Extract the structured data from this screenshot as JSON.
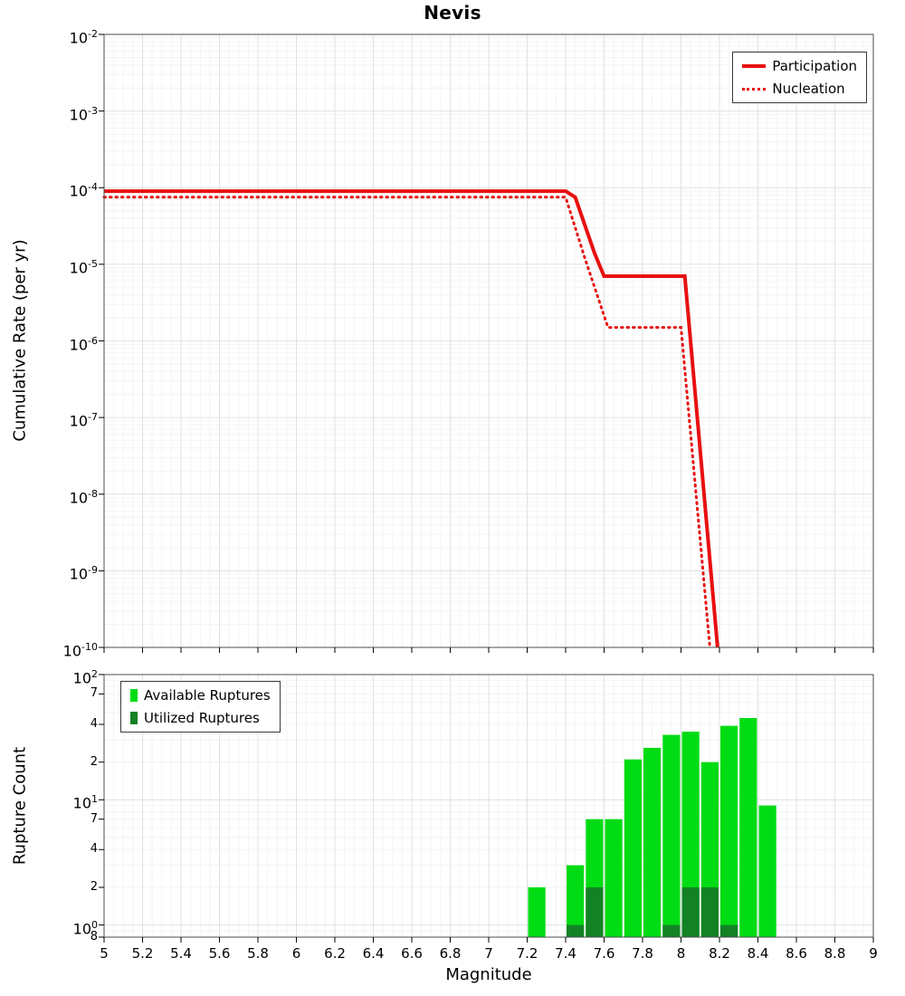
{
  "chart_data": [
    {
      "type": "line",
      "title": "Nevis",
      "xlabel": "",
      "ylabel": "Cumulative Rate (per yr)",
      "x_range": [
        5,
        9
      ],
      "y_range": [
        1e-10,
        0.01
      ],
      "y_scale": "log",
      "grid": true,
      "legend_position": "top-right",
      "y_ticks": [
        {
          "value": 0.01,
          "label": "10^-2"
        },
        {
          "value": 0.001,
          "label": "10^-3"
        },
        {
          "value": 0.0001,
          "label": "10^-4"
        },
        {
          "value": 1e-05,
          "label": "10^-5"
        },
        {
          "value": 1e-06,
          "label": "10^-6"
        },
        {
          "value": 1e-07,
          "label": "10^-7"
        },
        {
          "value": 1e-08,
          "label": "10^-8"
        },
        {
          "value": 1e-09,
          "label": "10^-9"
        },
        {
          "value": 1e-10,
          "label": "10^-10"
        }
      ],
      "series": [
        {
          "name": "Participation",
          "color": "#e81010",
          "style": "solid",
          "points": [
            [
              5.0,
              9e-05
            ],
            [
              7.4,
              9e-05
            ],
            [
              7.45,
              7.5e-05
            ],
            [
              7.55,
              1.4e-05
            ],
            [
              7.6,
              7e-06
            ],
            [
              8.02,
              7e-06
            ],
            [
              8.19,
              1e-10
            ]
          ]
        },
        {
          "name": "Nucleation",
          "color": "#e81010",
          "style": "dotted",
          "points": [
            [
              5.0,
              7.5e-05
            ],
            [
              7.4,
              7.5e-05
            ],
            [
              7.5,
              1.2e-05
            ],
            [
              7.62,
              1.5e-06
            ],
            [
              8.0,
              1.5e-06
            ],
            [
              8.15,
              1e-10
            ]
          ]
        }
      ]
    },
    {
      "type": "bar",
      "title": "",
      "xlabel": "Magnitude",
      "ylabel": "Rupture Count",
      "x_range": [
        5,
        9
      ],
      "y_range": [
        0.8,
        100
      ],
      "y_scale": "log",
      "grid": true,
      "bar_width": 0.1,
      "legend_position": "top-left",
      "y_ticks": [
        {
          "value": 100,
          "label": "10^2"
        },
        {
          "value": 70,
          "label": "7"
        },
        {
          "value": 40,
          "label": "4"
        },
        {
          "value": 20,
          "label": "2"
        },
        {
          "value": 10,
          "label": "10^1"
        },
        {
          "value": 7,
          "label": "7"
        },
        {
          "value": 4,
          "label": "4"
        },
        {
          "value": 2,
          "label": "2"
        },
        {
          "value": 1,
          "label": "10^0"
        },
        {
          "value": 0.8,
          "label": "8"
        }
      ],
      "x_tick_labels": [
        {
          "value": 5,
          "label": "5"
        },
        {
          "value": 5.2,
          "label": "5.2"
        },
        {
          "value": 5.4,
          "label": "5.4"
        },
        {
          "value": 5.6,
          "label": "5.6"
        },
        {
          "value": 5.8,
          "label": "5.8"
        },
        {
          "value": 6,
          "label": "6"
        },
        {
          "value": 6.2,
          "label": "6.2"
        },
        {
          "value": 6.4,
          "label": "6.4"
        },
        {
          "value": 6.6,
          "label": "6.6"
        },
        {
          "value": 6.8,
          "label": "6.8"
        },
        {
          "value": 7,
          "label": "7"
        },
        {
          "value": 7.2,
          "label": "7.2"
        },
        {
          "value": 7.4,
          "label": "7.4"
        },
        {
          "value": 7.6,
          "label": "7.6"
        },
        {
          "value": 7.8,
          "label": "7.8"
        },
        {
          "value": 8,
          "label": "8"
        },
        {
          "value": 8.2,
          "label": "8.2"
        },
        {
          "value": 8.4,
          "label": "8.4"
        },
        {
          "value": 8.6,
          "label": "8.6"
        },
        {
          "value": 8.8,
          "label": "8.8"
        },
        {
          "value": 9,
          "label": "9"
        }
      ],
      "series": [
        {
          "name": "Available Ruptures",
          "color": "#00dc14",
          "bars": [
            [
              7.25,
              2
            ],
            [
              7.45,
              3
            ],
            [
              7.55,
              7
            ],
            [
              7.65,
              7
            ],
            [
              7.75,
              21
            ],
            [
              7.85,
              26
            ],
            [
              7.95,
              33
            ],
            [
              8.05,
              35
            ],
            [
              8.15,
              20
            ],
            [
              8.25,
              39
            ],
            [
              8.35,
              45
            ],
            [
              8.45,
              9
            ]
          ]
        },
        {
          "name": "Utilized Ruptures",
          "color": "#128224",
          "bars": [
            [
              7.45,
              1
            ],
            [
              7.55,
              2
            ],
            [
              7.95,
              1
            ],
            [
              8.05,
              2
            ],
            [
              8.15,
              2
            ],
            [
              8.25,
              1
            ]
          ]
        }
      ]
    }
  ]
}
